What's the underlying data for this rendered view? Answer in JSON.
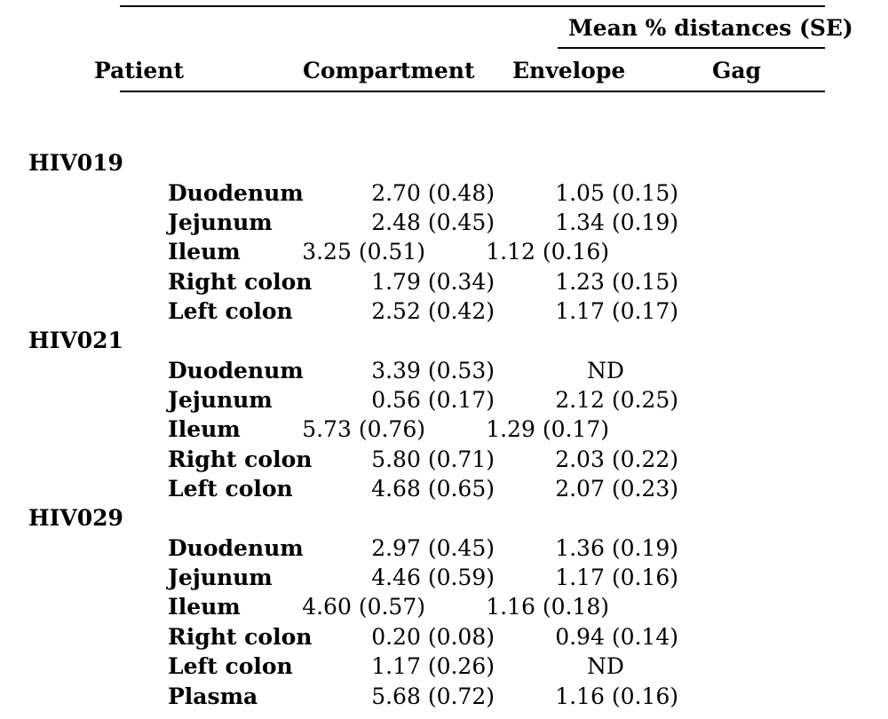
{
  "header": {
    "group_label": "Mean % distances (SE)",
    "col_patient": "Patient",
    "col_compartment": "Compartment",
    "col_envelope": "Envelope",
    "col_gag": "Gag"
  },
  "groups": [
    {
      "patient": "HIV019",
      "rows": [
        {
          "compartment": "Duodenum",
          "envelope": "2.70 (0.48)",
          "gag": "1.05 (0.15)",
          "shifted": false
        },
        {
          "compartment": "Jejunum",
          "envelope": "2.48 (0.45)",
          "gag": "1.34 (0.19)",
          "shifted": false
        },
        {
          "compartment": "Ileum",
          "envelope": "3.25 (0.51)",
          "gag": "1.12 (0.16)",
          "shifted": true
        },
        {
          "compartment": "Right colon",
          "envelope": "1.79 (0.34)",
          "gag": "1.23 (0.15)",
          "shifted": false
        },
        {
          "compartment": "Left colon",
          "envelope": "2.52 (0.42)",
          "gag": "1.17 (0.17)",
          "shifted": false
        }
      ]
    },
    {
      "patient": "HIV021",
      "rows": [
        {
          "compartment": "Duodenum",
          "envelope": "3.39 (0.53)",
          "gag": "ND",
          "shifted": false
        },
        {
          "compartment": "Jejunum",
          "envelope": "0.56 (0.17)",
          "gag": "2.12 (0.25)",
          "shifted": false
        },
        {
          "compartment": "Ileum",
          "envelope": "5.73 (0.76)",
          "gag": "1.29 (0.17)",
          "shifted": true
        },
        {
          "compartment": "Right colon",
          "envelope": "5.80 (0.71)",
          "gag": "2.03 (0.22)",
          "shifted": false
        },
        {
          "compartment": "Left colon",
          "envelope": "4.68 (0.65)",
          "gag": "2.07 (0.23)",
          "shifted": false
        }
      ]
    },
    {
      "patient": "HIV029",
      "rows": [
        {
          "compartment": "Duodenum",
          "envelope": "2.97 (0.45)",
          "gag": "1.36 (0.19)",
          "shifted": false
        },
        {
          "compartment": "Jejunum",
          "envelope": "4.46 (0.59)",
          "gag": "1.17 (0.16)",
          "shifted": false
        },
        {
          "compartment": "Ileum",
          "envelope": "4.60 (0.57)",
          "gag": "1.16 (0.18)",
          "shifted": true
        },
        {
          "compartment": "Right colon",
          "envelope": "0.20 (0.08)",
          "gag": "0.94 (0.14)",
          "shifted": false
        },
        {
          "compartment": "Left colon",
          "envelope": "1.17 (0.26)",
          "gag": "ND",
          "shifted": false
        },
        {
          "compartment": "Plasma",
          "envelope": "5.68 (0.72)",
          "gag": "1.16 (0.16)",
          "shifted": false
        }
      ]
    }
  ]
}
